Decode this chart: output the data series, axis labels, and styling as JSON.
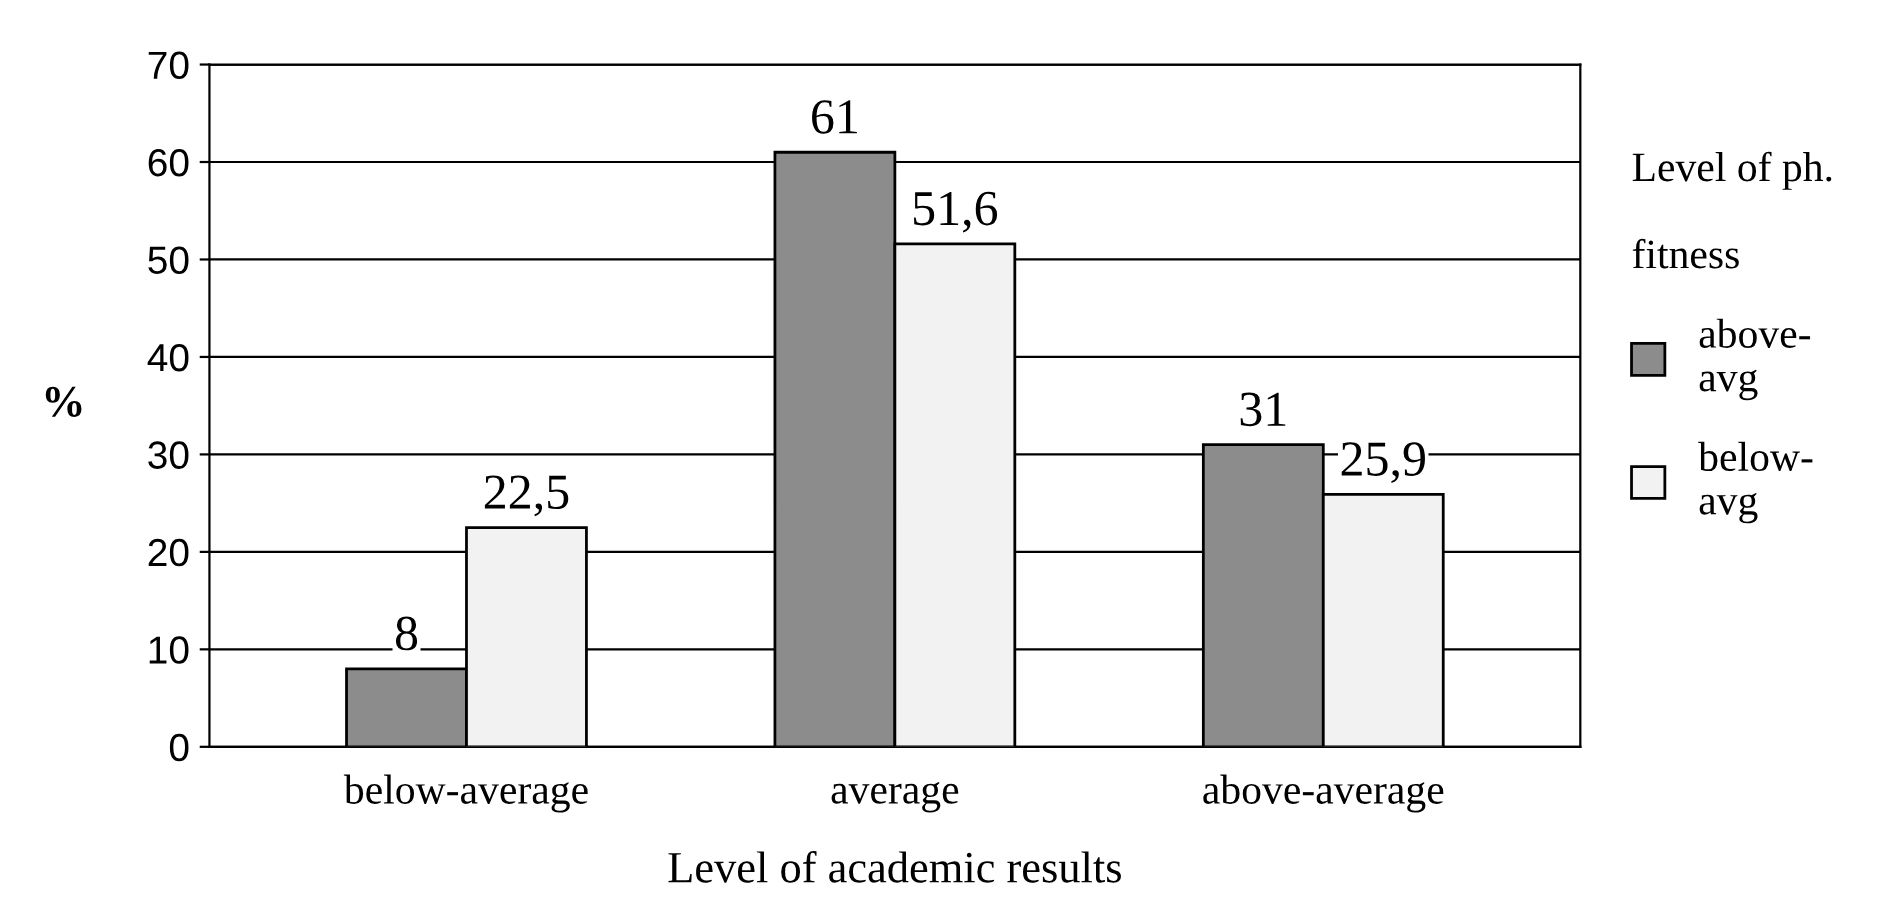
{
  "chart_data": {
    "type": "bar",
    "xlabel": "Level of academic results",
    "ylabel": "%",
    "legend_title": "Level of ph.\n\nfitness",
    "categories": [
      "below-average",
      "average",
      "above-average"
    ],
    "series": [
      {
        "name": "above-avg",
        "color": "#8c8c8c",
        "values": [
          8,
          61,
          31
        ],
        "value_labels": [
          "8",
          "61",
          "31"
        ]
      },
      {
        "name": "below-avg",
        "color": "#f2f2f2",
        "values": [
          22.5,
          51.6,
          25.9
        ],
        "value_labels": [
          "22,5",
          "51,6",
          "25,9"
        ]
      }
    ],
    "ylim": [
      0,
      70
    ],
    "yticks": [
      0,
      10,
      20,
      30,
      40,
      50,
      60,
      70
    ],
    "grid": "y",
    "legend": "right"
  }
}
